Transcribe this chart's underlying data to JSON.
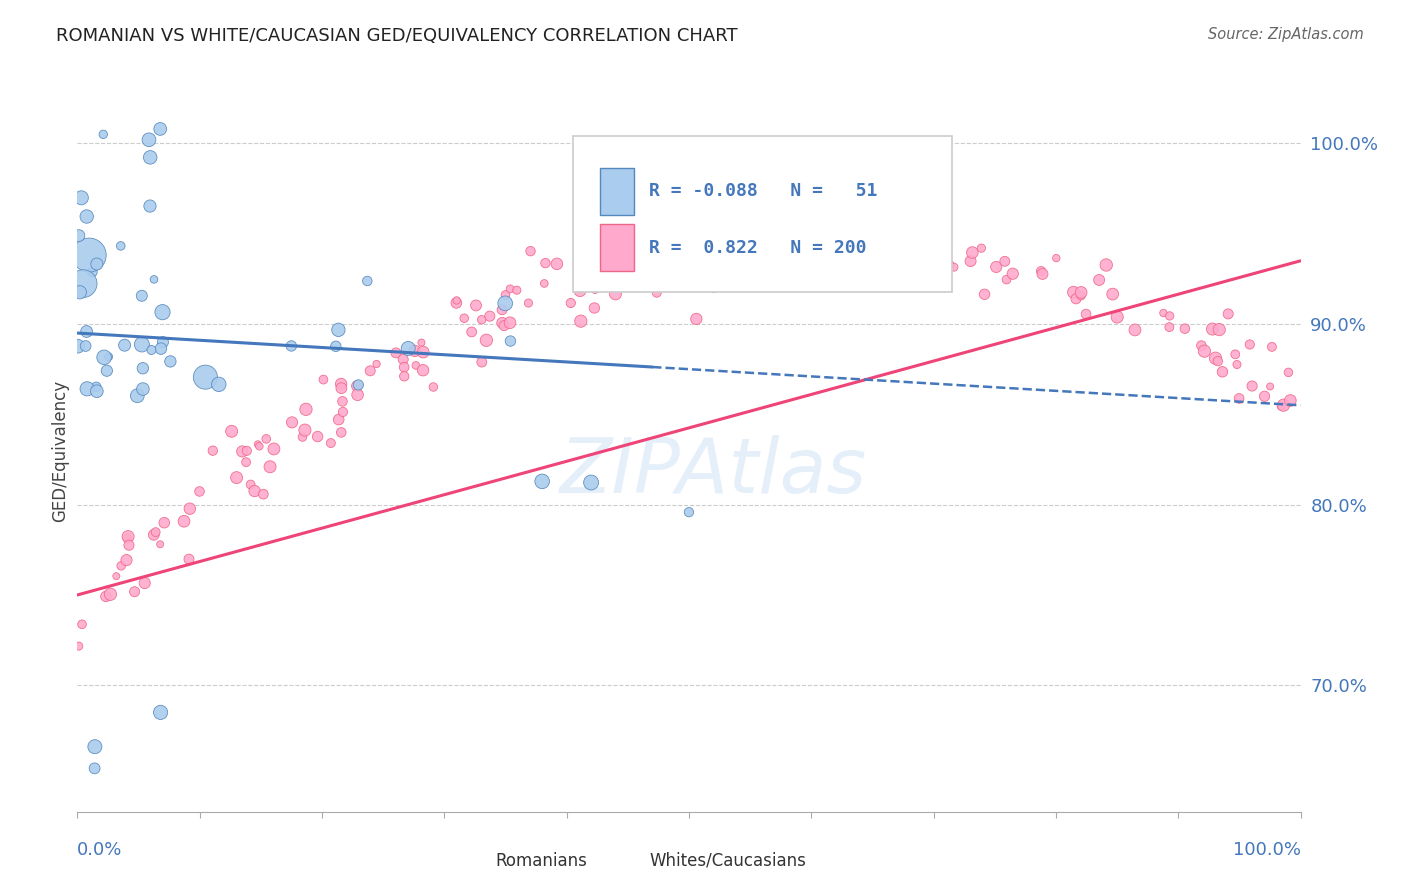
{
  "title": "ROMANIAN VS WHITE/CAUCASIAN GED/EQUIVALENCY CORRELATION CHART",
  "source": "Source: ZipAtlas.com",
  "ylabel": "GED/Equivalency",
  "ytick_labels": [
    "70.0%",
    "80.0%",
    "90.0%",
    "100.0%"
  ],
  "ytick_values": [
    0.7,
    0.8,
    0.9,
    1.0
  ],
  "legend_blue_r": "-0.088",
  "legend_blue_n": "51",
  "legend_pink_r": "0.822",
  "legend_pink_n": "200",
  "legend_blue_label": "Romanians",
  "legend_pink_label": "Whites/Caucasians",
  "blue_fill": "#AACCEE",
  "blue_edge": "#5588BB",
  "pink_fill": "#FFAACC",
  "pink_edge": "#EE6688",
  "blue_line": "#4477BB",
  "pink_line": "#EE4477",
  "axis_label_color": "#4477BB",
  "title_color": "#222222",
  "source_color": "#666666",
  "grid_color": "#CCCCCC",
  "bg_color": "#FFFFFF",
  "watermark_text": "ZIPAtlas",
  "watermark_color": "#AACCEE"
}
